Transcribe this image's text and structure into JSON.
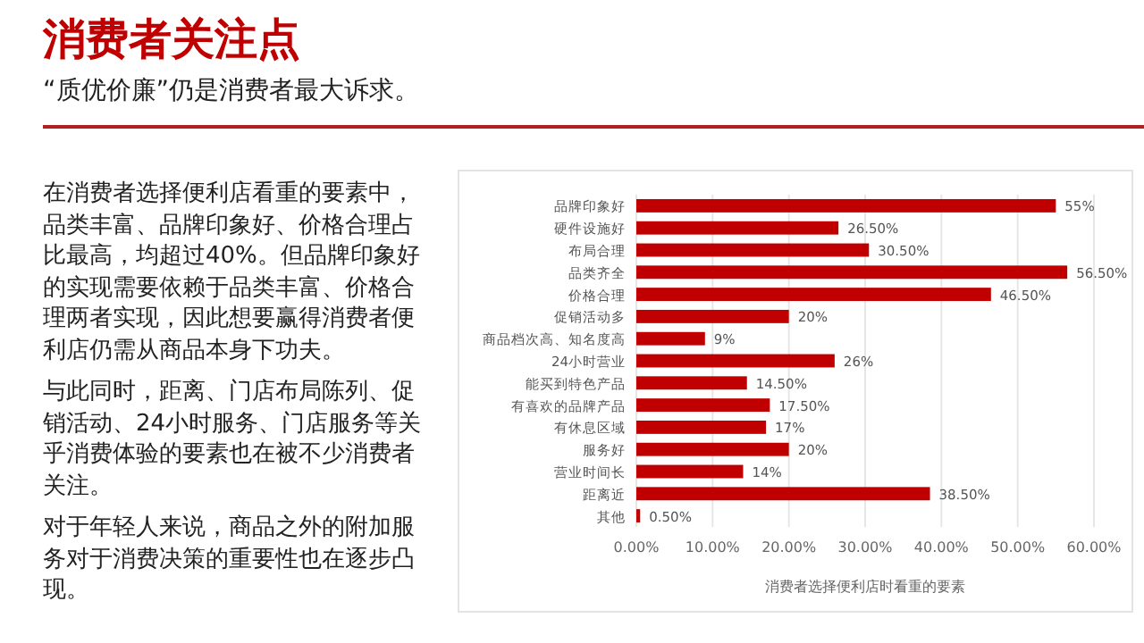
{
  "chart_data": {
    "type": "bar",
    "orientation": "horizontal",
    "title": "消费者关注点",
    "subtitle": "“质优价廉”仍是消费者最大诉求。",
    "annotations": [
      "在消费者选择便利店看重的要素中，品类丰富、品牌印象好、价格合理占比最高，均超过40%。但品牌印象好的实现需要依赖于品类丰富、价格合理两者实现，因此想要赢得消费者便利店仍需从商品本身下功夫。",
      "与此同时，距离、门店布局陈列、促销活动、24小时服务、门店服务等关乎消费体验的要素也在被不少消费者关注。",
      "对于年轻人来说，商品之外的附加服务对于消费决策的重要性也在逐步凸现。"
    ],
    "xlabel": "消费者选择便利店时看重的要素",
    "categories": [
      "品牌印象好",
      "硬件设施好",
      "布局合理",
      "品类齐全",
      "价格合理",
      "促销活动多",
      "商品档次高、知名度高",
      "24小时营业",
      "能买到特色产品",
      "有喜欢的品牌产品",
      "有休息区域",
      "服务好",
      "营业时间长",
      "距离近",
      "其他"
    ],
    "values": [
      55,
      26.5,
      30.5,
      56.5,
      46.5,
      20,
      9,
      26,
      14.5,
      17.5,
      17,
      20,
      14,
      38.5,
      0.5
    ],
    "value_labels": [
      "55%",
      "26.50%",
      "30.50%",
      "56.50%",
      "46.50%",
      "20%",
      "9%",
      "26%",
      "14.50%",
      "17.50%",
      "17%",
      "20%",
      "14%",
      "38.50%",
      "0.50%"
    ],
    "color": "#c00000",
    "xlim": [
      0,
      60
    ],
    "xticks": [
      {
        "value": 0,
        "label": "0.00%"
      },
      {
        "value": 10,
        "label": "10.00%"
      },
      {
        "value": 20,
        "label": "20.00%"
      },
      {
        "value": 30,
        "label": "30.00%"
      },
      {
        "value": 40,
        "label": "40.00%"
      },
      {
        "value": 50,
        "label": "50.00%"
      },
      {
        "value": 60,
        "label": "60.00%"
      }
    ],
    "grid": "x"
  }
}
